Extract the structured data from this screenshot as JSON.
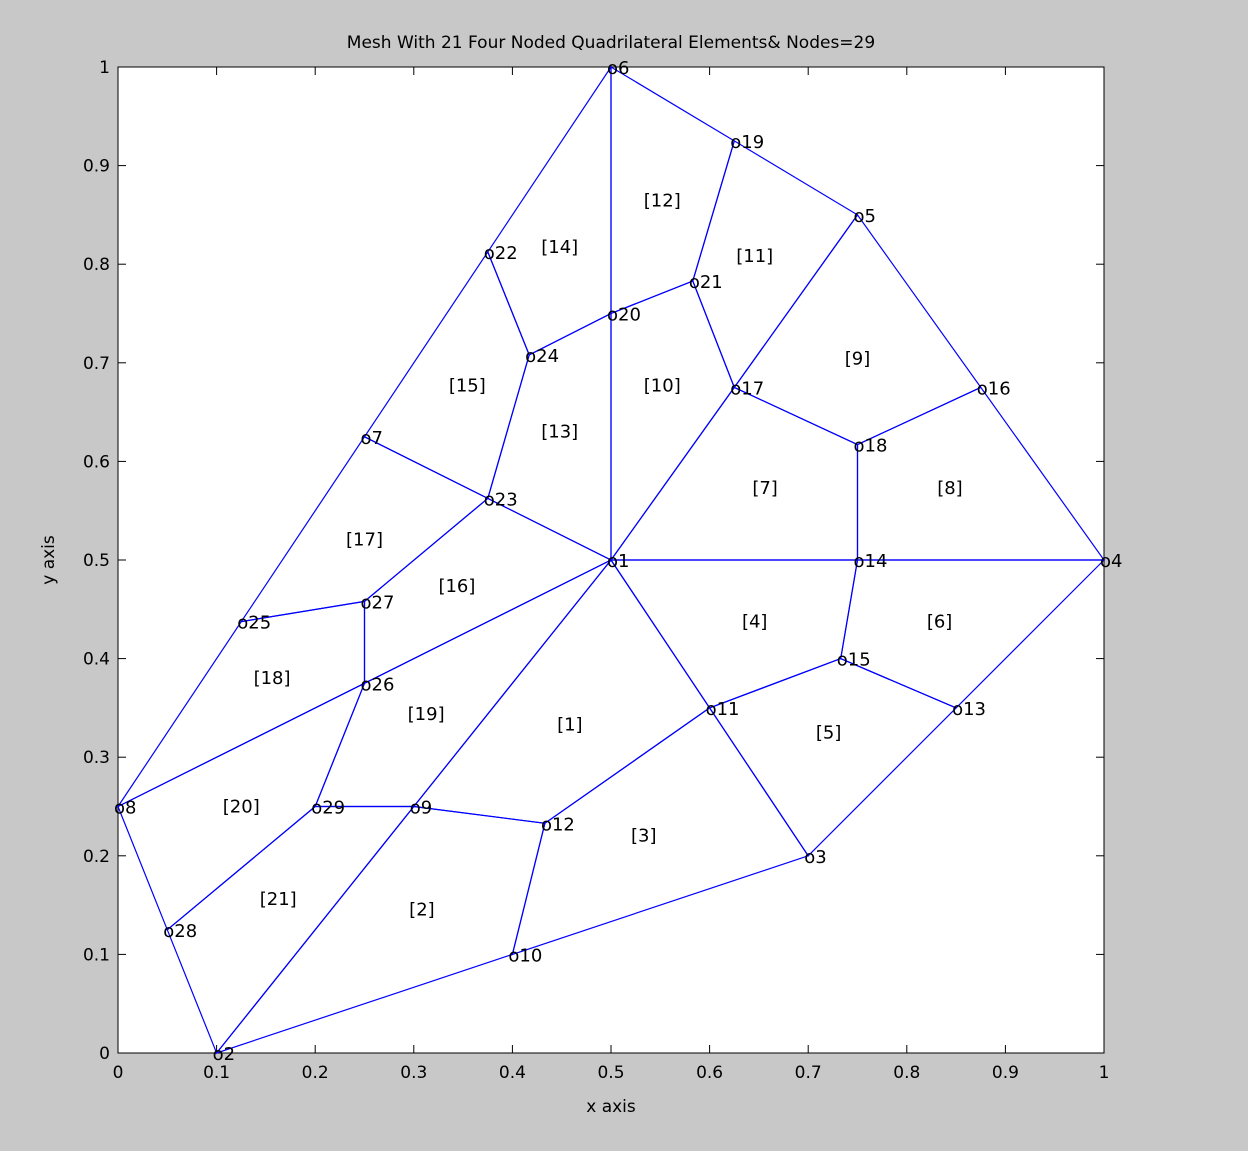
{
  "chart_data": {
    "type": "mesh",
    "title": "Mesh With 21 Four Noded  Quadrilateral Elements& Nodes=29",
    "xlabel": "x axis",
    "ylabel": "y axis",
    "xlim": [
      0,
      1
    ],
    "ylim": [
      0,
      1
    ],
    "xticks": [
      "0",
      "0.1",
      "0.2",
      "0.3",
      "0.4",
      "0.5",
      "0.6",
      "0.7",
      "0.8",
      "0.9",
      "1"
    ],
    "yticks": [
      "0",
      "0.1",
      "0.2",
      "0.3",
      "0.4",
      "0.5",
      "0.6",
      "0.7",
      "0.8",
      "0.9",
      "1"
    ],
    "line_color": "#0000ff",
    "nodes": [
      {
        "id": 1,
        "label": "o1",
        "x": 0.5,
        "y": 0.5
      },
      {
        "id": 2,
        "label": "o2",
        "x": 0.1,
        "y": 0.0
      },
      {
        "id": 3,
        "label": "o3",
        "x": 0.7,
        "y": 0.2
      },
      {
        "id": 4,
        "label": "o4",
        "x": 1.0,
        "y": 0.5
      },
      {
        "id": 5,
        "label": "o5",
        "x": 0.75,
        "y": 0.85
      },
      {
        "id": 6,
        "label": "o6",
        "x": 0.5,
        "y": 1.0
      },
      {
        "id": 7,
        "label": "o7",
        "x": 0.25,
        "y": 0.625
      },
      {
        "id": 8,
        "label": "o8",
        "x": 0.0,
        "y": 0.25
      },
      {
        "id": 9,
        "label": "o9",
        "x": 0.3,
        "y": 0.25
      },
      {
        "id": 10,
        "label": "o10",
        "x": 0.4,
        "y": 0.1
      },
      {
        "id": 11,
        "label": "o11",
        "x": 0.6,
        "y": 0.35
      },
      {
        "id": 12,
        "label": "o12",
        "x": 0.433,
        "y": 0.233
      },
      {
        "id": 13,
        "label": "o13",
        "x": 0.85,
        "y": 0.35
      },
      {
        "id": 14,
        "label": "o14",
        "x": 0.75,
        "y": 0.5
      },
      {
        "id": 15,
        "label": "o15",
        "x": 0.733,
        "y": 0.4
      },
      {
        "id": 16,
        "label": "o16",
        "x": 0.875,
        "y": 0.675
      },
      {
        "id": 17,
        "label": "o17",
        "x": 0.625,
        "y": 0.675
      },
      {
        "id": 18,
        "label": "o18",
        "x": 0.75,
        "y": 0.617
      },
      {
        "id": 19,
        "label": "o19",
        "x": 0.625,
        "y": 0.925
      },
      {
        "id": 20,
        "label": "o20",
        "x": 0.5,
        "y": 0.75
      },
      {
        "id": 21,
        "label": "o21",
        "x": 0.583,
        "y": 0.783
      },
      {
        "id": 22,
        "label": "o22",
        "x": 0.375,
        "y": 0.8125
      },
      {
        "id": 23,
        "label": "o23",
        "x": 0.375,
        "y": 0.5625
      },
      {
        "id": 24,
        "label": "o24",
        "x": 0.417,
        "y": 0.708
      },
      {
        "id": 25,
        "label": "o25",
        "x": 0.125,
        "y": 0.4375
      },
      {
        "id": 26,
        "label": "o26",
        "x": 0.25,
        "y": 0.375
      },
      {
        "id": 27,
        "label": "o27",
        "x": 0.25,
        "y": 0.458
      },
      {
        "id": 28,
        "label": "o28",
        "x": 0.05,
        "y": 0.125
      },
      {
        "id": 29,
        "label": "o29",
        "x": 0.2,
        "y": 0.25
      }
    ],
    "elements": [
      {
        "label": "[1]",
        "nodes": [
          1,
          9,
          12,
          11
        ]
      },
      {
        "label": "[2]",
        "nodes": [
          9,
          2,
          10,
          12
        ]
      },
      {
        "label": "[3]",
        "nodes": [
          12,
          10,
          3,
          11
        ]
      },
      {
        "label": "[4]",
        "nodes": [
          1,
          11,
          15,
          14
        ]
      },
      {
        "label": "[5]",
        "nodes": [
          11,
          3,
          13,
          15
        ]
      },
      {
        "label": "[6]",
        "nodes": [
          14,
          15,
          13,
          4
        ]
      },
      {
        "label": "[7]",
        "nodes": [
          1,
          14,
          18,
          17
        ]
      },
      {
        "label": "[8]",
        "nodes": [
          14,
          4,
          16,
          18
        ]
      },
      {
        "label": "[9]",
        "nodes": [
          17,
          18,
          16,
          5
        ]
      },
      {
        "label": "[10]",
        "nodes": [
          1,
          17,
          21,
          20
        ]
      },
      {
        "label": "[11]",
        "nodes": [
          17,
          5,
          19,
          21
        ]
      },
      {
        "label": "[12]",
        "nodes": [
          20,
          21,
          19,
          6
        ]
      },
      {
        "label": "[13]",
        "nodes": [
          1,
          20,
          24,
          23
        ]
      },
      {
        "label": "[14]",
        "nodes": [
          20,
          6,
          22,
          24
        ]
      },
      {
        "label": "[15]",
        "nodes": [
          23,
          24,
          22,
          7
        ]
      },
      {
        "label": "[16]",
        "nodes": [
          1,
          23,
          27,
          26
        ]
      },
      {
        "label": "[17]",
        "nodes": [
          23,
          7,
          25,
          27
        ]
      },
      {
        "label": "[18]",
        "nodes": [
          26,
          27,
          25,
          8
        ]
      },
      {
        "label": "[19]",
        "nodes": [
          1,
          26,
          29,
          9
        ]
      },
      {
        "label": "[20]",
        "nodes": [
          26,
          8,
          28,
          29
        ]
      },
      {
        "label": "[21]",
        "nodes": [
          9,
          29,
          28,
          2
        ]
      }
    ]
  }
}
